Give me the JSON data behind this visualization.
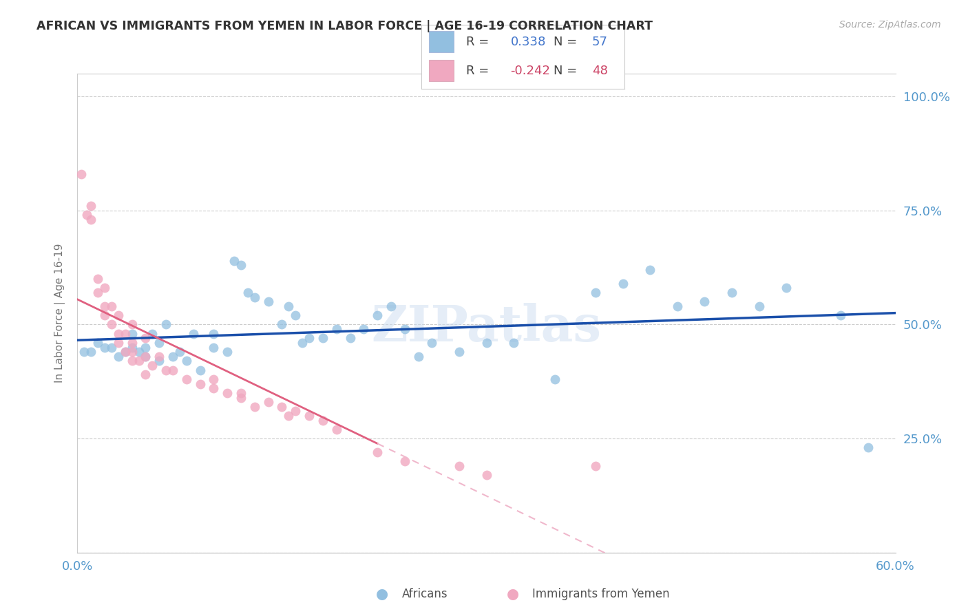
{
  "title": "AFRICAN VS IMMIGRANTS FROM YEMEN IN LABOR FORCE | AGE 16-19 CORRELATION CHART",
  "source": "Source: ZipAtlas.com",
  "ylabel": "In Labor Force | Age 16-19",
  "xlim": [
    0.0,
    0.6
  ],
  "ylim": [
    0.0,
    1.05
  ],
  "blue_color": "#92bfe0",
  "pink_color": "#f0a8c0",
  "blue_line_color": "#1a4faa",
  "pink_line_color": "#e06080",
  "pink_dash_color": "#f0b8cc",
  "watermark": "ZIPatlas",
  "legend_blue_R": "0.338",
  "legend_blue_N": "57",
  "legend_pink_R": "-0.242",
  "legend_pink_N": "48",
  "grid_color": "#cccccc",
  "background_color": "#ffffff",
  "blue_scatter_x": [
    0.005,
    0.01,
    0.015,
    0.02,
    0.025,
    0.03,
    0.035,
    0.04,
    0.04,
    0.045,
    0.05,
    0.05,
    0.055,
    0.06,
    0.06,
    0.065,
    0.07,
    0.075,
    0.08,
    0.085,
    0.09,
    0.1,
    0.1,
    0.11,
    0.115,
    0.12,
    0.125,
    0.13,
    0.14,
    0.15,
    0.155,
    0.16,
    0.165,
    0.17,
    0.18,
    0.19,
    0.2,
    0.21,
    0.22,
    0.23,
    0.24,
    0.25,
    0.26,
    0.28,
    0.3,
    0.32,
    0.35,
    0.38,
    0.4,
    0.42,
    0.44,
    0.46,
    0.48,
    0.5,
    0.52,
    0.56,
    0.58
  ],
  "blue_scatter_y": [
    0.44,
    0.44,
    0.46,
    0.45,
    0.45,
    0.43,
    0.44,
    0.45,
    0.48,
    0.44,
    0.43,
    0.45,
    0.48,
    0.42,
    0.46,
    0.5,
    0.43,
    0.44,
    0.42,
    0.48,
    0.4,
    0.45,
    0.48,
    0.44,
    0.64,
    0.63,
    0.57,
    0.56,
    0.55,
    0.5,
    0.54,
    0.52,
    0.46,
    0.47,
    0.47,
    0.49,
    0.47,
    0.49,
    0.52,
    0.54,
    0.49,
    0.43,
    0.46,
    0.44,
    0.46,
    0.46,
    0.38,
    0.57,
    0.59,
    0.62,
    0.54,
    0.55,
    0.57,
    0.54,
    0.58,
    0.52,
    0.23
  ],
  "pink_scatter_x": [
    0.003,
    0.007,
    0.01,
    0.01,
    0.015,
    0.015,
    0.02,
    0.02,
    0.02,
    0.025,
    0.025,
    0.03,
    0.03,
    0.03,
    0.035,
    0.035,
    0.04,
    0.04,
    0.04,
    0.04,
    0.045,
    0.05,
    0.05,
    0.05,
    0.055,
    0.06,
    0.065,
    0.07,
    0.08,
    0.09,
    0.1,
    0.1,
    0.11,
    0.12,
    0.12,
    0.13,
    0.14,
    0.15,
    0.155,
    0.16,
    0.17,
    0.18,
    0.19,
    0.22,
    0.24,
    0.28,
    0.3,
    0.38
  ],
  "pink_scatter_y": [
    0.83,
    0.74,
    0.76,
    0.73,
    0.57,
    0.6,
    0.52,
    0.54,
    0.58,
    0.5,
    0.54,
    0.46,
    0.48,
    0.52,
    0.44,
    0.48,
    0.42,
    0.44,
    0.46,
    0.5,
    0.42,
    0.39,
    0.43,
    0.47,
    0.41,
    0.43,
    0.4,
    0.4,
    0.38,
    0.37,
    0.36,
    0.38,
    0.35,
    0.35,
    0.34,
    0.32,
    0.33,
    0.32,
    0.3,
    0.31,
    0.3,
    0.29,
    0.27,
    0.22,
    0.2,
    0.19,
    0.17,
    0.19
  ]
}
